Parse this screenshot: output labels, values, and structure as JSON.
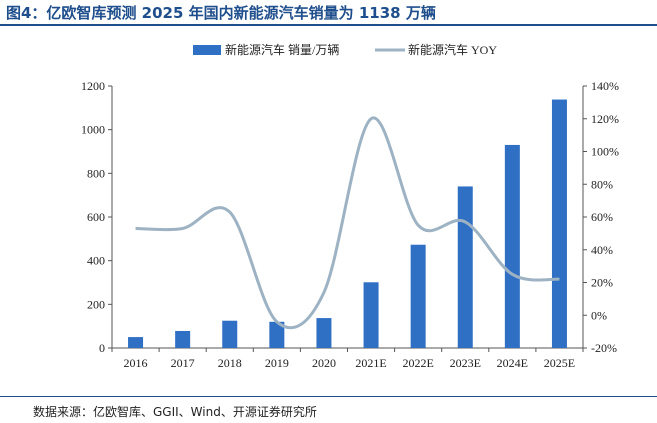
{
  "figure": {
    "title": "图4：亿欧智库预测 2025 年国内新能源汽车销量为 1138 万辆",
    "source": "数据来源：亿欧智库、GGII、Wind、开源证券研究所"
  },
  "colors": {
    "bar": "#2f6fc4",
    "line": "#9db3c3",
    "axis": "#555555",
    "title": "#1f4e8c"
  },
  "chart_data": {
    "type": "bar+line",
    "categories": [
      "2016",
      "2017",
      "2018",
      "2019",
      "2020",
      "2021E",
      "2022E",
      "2023E",
      "2024E",
      "2025E"
    ],
    "series": [
      {
        "name": "新能源汽车 销量/万辆",
        "type": "bar",
        "axis": "left",
        "values": [
          50,
          78,
          125,
          120,
          137,
          301,
          473,
          740,
          930,
          1138
        ]
      },
      {
        "name": "新能源汽车 YOY",
        "type": "line",
        "axis": "right",
        "unit": "%",
        "values": [
          53,
          53,
          63,
          -4,
          14,
          120,
          55,
          57,
          25,
          22
        ]
      }
    ],
    "y_left": {
      "min": 0,
      "max": 1200,
      "step": 200,
      "ticks": [
        "0",
        "200",
        "400",
        "600",
        "800",
        "1000",
        "1200"
      ]
    },
    "y_right": {
      "min": -20,
      "max": 140,
      "step": 20,
      "ticks": [
        "-20%",
        "0%",
        "20%",
        "40%",
        "60%",
        "80%",
        "100%",
        "120%",
        "140%"
      ]
    },
    "legend_position": "top-center",
    "grid": false
  }
}
